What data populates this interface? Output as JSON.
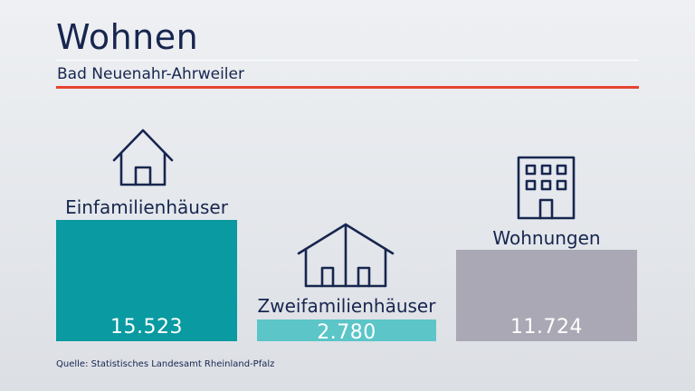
{
  "header": {
    "title": "Wohnen",
    "subtitle": "Bad Neuenahr-Ahrweiler"
  },
  "source": "Quelle: Statistisches Landesamt Rheinland-Pfalz",
  "colors": {
    "title": "#17264f",
    "accent": "#e5432f",
    "bar_einfamilien": "#0a9aa1",
    "bar_zweifamilien": "#5bc5c8",
    "bar_wohnungen": "#a9a8b4"
  },
  "icons": [
    "house-icon",
    "double-house-icon",
    "apartment-building-icon"
  ],
  "chart_data": {
    "type": "bar",
    "categories": [
      "Einfamilienhäuser",
      "Zweifamilienhäuser",
      "Wohnungen"
    ],
    "values": [
      15523,
      2780,
      11724
    ],
    "value_labels": [
      "15.523",
      "2.780",
      "11.724"
    ],
    "grid": false
  }
}
